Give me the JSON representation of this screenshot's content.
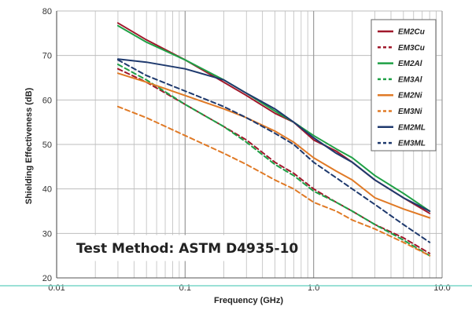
{
  "chart_data": {
    "type": "line",
    "title": "",
    "xlabel": "Frequency (GHz)",
    "ylabel": "Shielding Effectiveness (dB)",
    "xscale": "log",
    "xlim": [
      0.01,
      10
    ],
    "ylim": [
      20,
      80
    ],
    "x_ticks": [
      0.01,
      0.1,
      1,
      10
    ],
    "x_tick_labels": [
      "0.01",
      "0.1",
      "1.0",
      "10.0"
    ],
    "y_ticks": [
      20,
      30,
      40,
      50,
      60,
      70,
      80
    ],
    "y_tick_labels": [
      "20",
      "30",
      "40",
      "50",
      "60",
      "70",
      "80"
    ],
    "grid": true,
    "legend_position": "top-right",
    "annotation": "Test Method: ASTM D4935-10",
    "colors": {
      "copper": "#a0182b",
      "aluminum": "#1fa046",
      "nickel": "#e07a26",
      "mylar": "#1f3a6e",
      "baseline": "#7ad6c8",
      "grid": "#bdbdbd"
    },
    "series": [
      {
        "name": "EM2Cu",
        "color": "#a0182b",
        "dash": false,
        "x": [
          0.03,
          0.05,
          0.1,
          0.2,
          0.3,
          0.5,
          0.7,
          1.0,
          1.5,
          2,
          3,
          5,
          8
        ],
        "y": [
          77.3,
          73.5,
          69,
          64,
          61,
          57,
          55,
          51,
          48.5,
          46,
          42,
          38,
          34.5
        ]
      },
      {
        "name": "EM3Cu",
        "color": "#a0182b",
        "dash": true,
        "x": [
          0.03,
          0.05,
          0.1,
          0.2,
          0.3,
          0.5,
          0.7,
          1.0,
          1.5,
          2,
          3,
          5,
          8
        ],
        "y": [
          67,
          64,
          59,
          54,
          51,
          46,
          43.5,
          40,
          37,
          35,
          32,
          29,
          25.5
        ]
      },
      {
        "name": "EM2Al",
        "color": "#1fa046",
        "dash": false,
        "x": [
          0.03,
          0.05,
          0.1,
          0.2,
          0.3,
          0.5,
          0.7,
          1.0,
          1.5,
          2,
          3,
          5,
          8
        ],
        "y": [
          76.7,
          73,
          69,
          64.5,
          61.5,
          57.5,
          55,
          52,
          49,
          47,
          43,
          39,
          35
        ]
      },
      {
        "name": "EM3Al",
        "color": "#1fa046",
        "dash": true,
        "x": [
          0.03,
          0.05,
          0.1,
          0.2,
          0.3,
          0.5,
          0.7,
          1.0,
          1.5,
          2,
          3,
          5,
          8
        ],
        "y": [
          68,
          64.5,
          59,
          54,
          50.5,
          45.5,
          43,
          39.5,
          37,
          35,
          32,
          28.5,
          25
        ]
      },
      {
        "name": "EM2Ni",
        "color": "#e07a26",
        "dash": false,
        "x": [
          0.03,
          0.05,
          0.1,
          0.2,
          0.3,
          0.5,
          0.7,
          1.0,
          1.5,
          2,
          3,
          5,
          8
        ],
        "y": [
          66,
          64,
          61,
          58,
          56,
          53,
          50.5,
          47,
          44,
          42,
          38,
          35.5,
          33.5
        ]
      },
      {
        "name": "EM3Ni",
        "color": "#e07a26",
        "dash": true,
        "x": [
          0.03,
          0.05,
          0.1,
          0.2,
          0.3,
          0.5,
          0.7,
          1.0,
          1.5,
          2,
          3,
          5,
          8
        ],
        "y": [
          58.5,
          56,
          52,
          48,
          45.5,
          42,
          40,
          37,
          35,
          33,
          31,
          28,
          25
        ]
      },
      {
        "name": "EM2ML",
        "color": "#1f3a6e",
        "dash": false,
        "x": [
          0.03,
          0.05,
          0.1,
          0.2,
          0.3,
          0.5,
          0.7,
          1.0,
          1.5,
          2,
          3,
          5,
          8
        ],
        "y": [
          69.2,
          68.5,
          67,
          64.5,
          61.5,
          58,
          55,
          51.5,
          48,
          46,
          42,
          38,
          35
        ]
      },
      {
        "name": "EM3ML",
        "color": "#1f3a6e",
        "dash": true,
        "x": [
          0.03,
          0.05,
          0.1,
          0.2,
          0.3,
          0.5,
          0.7,
          1.0,
          1.5,
          2,
          3,
          5,
          8
        ],
        "y": [
          69,
          65.5,
          62,
          58.5,
          56,
          52.5,
          50,
          46,
          42.5,
          40,
          36.5,
          32,
          28
        ]
      }
    ]
  }
}
